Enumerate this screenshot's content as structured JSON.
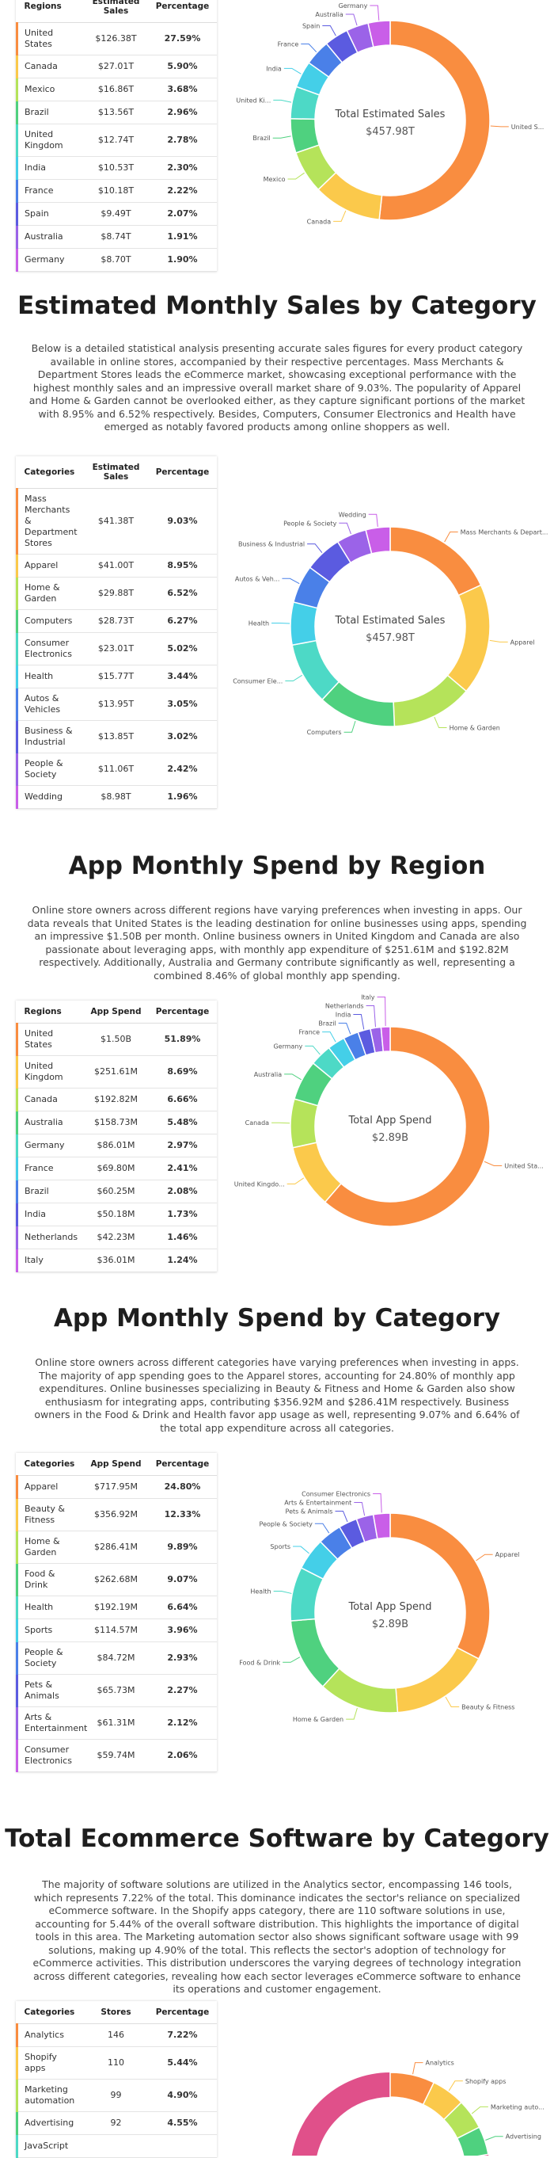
{
  "colors": [
    "#f98d40",
    "#fbc94b",
    "#b5e35a",
    "#4fd17f",
    "#4dd9c6",
    "#44cfe8",
    "#4a80e8",
    "#5b5be0",
    "#9b63e8",
    "#c95ee8"
  ],
  "sections": [
    {
      "table": {
        "columns": [
          "Regions",
          "Estimated Sales",
          "Percentage"
        ],
        "rows": [
          [
            "United States",
            "$126.38T",
            "27.59%"
          ],
          [
            "Canada",
            "$27.01T",
            "5.90%"
          ],
          [
            "Mexico",
            "$16.86T",
            "3.68%"
          ],
          [
            "Brazil",
            "$13.56T",
            "2.96%"
          ],
          [
            "United Kingdom",
            "$12.74T",
            "2.78%"
          ],
          [
            "India",
            "$10.53T",
            "2.30%"
          ],
          [
            "France",
            "$10.18T",
            "2.22%"
          ],
          [
            "Spain",
            "$9.49T",
            "2.07%"
          ],
          [
            "Australia",
            "$8.74T",
            "1.91%"
          ],
          [
            "Germany",
            "$8.70T",
            "1.90%"
          ]
        ]
      },
      "donut": {
        "center_title": "Total Estimated Sales",
        "center_value": "$457.98T",
        "labels": [
          "United S...",
          "Canada",
          "Mexico",
          "Brazil",
          "United Ki...",
          "India",
          "France",
          "Spain",
          "Australia",
          "Germany"
        ],
        "values": [
          27.59,
          5.9,
          3.68,
          2.96,
          2.78,
          2.3,
          2.22,
          2.07,
          1.91,
          1.9
        ]
      }
    },
    {
      "title": "Estimated Monthly Sales by Category",
      "paragraph": "Below is a detailed statistical analysis presenting accurate sales figures for every product category available in online stores, accompanied by their respective percentages. Mass Merchants & Department Stores leads the eCommerce market, showcasing exceptional performance with the highest monthly sales and an impressive overall market share of 9.03%. The popularity of Apparel and Home & Garden cannot be overlooked either, as they capture significant portions of the market with 8.95% and 6.52% respectively. Besides, Computers, Consumer Electronics and Health have emerged as notably favored products among online shoppers as well.",
      "table": {
        "columns": [
          "Categories",
          "Estimated Sales",
          "Percentage"
        ],
        "rows": [
          [
            "Mass Merchants & Department Stores",
            "$41.38T",
            "9.03%"
          ],
          [
            "Apparel",
            "$41.00T",
            "8.95%"
          ],
          [
            "Home & Garden",
            "$29.88T",
            "6.52%"
          ],
          [
            "Computers",
            "$28.73T",
            "6.27%"
          ],
          [
            "Consumer Electronics",
            "$23.01T",
            "5.02%"
          ],
          [
            "Health",
            "$15.77T",
            "3.44%"
          ],
          [
            "Autos & Vehicles",
            "$13.95T",
            "3.05%"
          ],
          [
            "Business & Industrial",
            "$13.85T",
            "3.02%"
          ],
          [
            "People & Society",
            "$11.06T",
            "2.42%"
          ],
          [
            "Wedding",
            "$8.98T",
            "1.96%"
          ]
        ]
      },
      "donut": {
        "center_title": "Total Estimated Sales",
        "center_value": "$457.98T",
        "labels": [
          "Mass Merchants & Depart...",
          "Apparel",
          "Home & Garden",
          "Computers",
          "Consumer Ele...",
          "Health",
          "Autos & Veh...",
          "Business & Industrial",
          "People & Society",
          "Wedding"
        ],
        "values": [
          9.03,
          8.95,
          6.52,
          6.27,
          5.02,
          3.44,
          3.05,
          3.02,
          2.42,
          1.96
        ]
      }
    },
    {
      "title": "App Monthly Spend by Region",
      "paragraph": "Online store owners across different regions have varying preferences when investing in apps. Our data reveals that United States is the leading destination for online businesses using apps, spending an impressive $1.50B per month. Online business owners in United Kingdom and Canada are also passionate about leveraging apps, with monthly app expenditure of $251.61M and $192.82M respectively. Additionally, Australia and Germany contribute significantly as well, representing a combined 8.46% of global monthly app spending.",
      "table": {
        "columns": [
          "Regions",
          "App Spend",
          "Percentage"
        ],
        "rows": [
          [
            "United States",
            "$1.50B",
            "51.89%"
          ],
          [
            "United Kingdom",
            "$251.61M",
            "8.69%"
          ],
          [
            "Canada",
            "$192.82M",
            "6.66%"
          ],
          [
            "Australia",
            "$158.73M",
            "5.48%"
          ],
          [
            "Germany",
            "$86.01M",
            "2.97%"
          ],
          [
            "France",
            "$69.80M",
            "2.41%"
          ],
          [
            "Brazil",
            "$60.25M",
            "2.08%"
          ],
          [
            "India",
            "$50.18M",
            "1.73%"
          ],
          [
            "Netherlands",
            "$42.23M",
            "1.46%"
          ],
          [
            "Italy",
            "$36.01M",
            "1.24%"
          ]
        ]
      },
      "donut": {
        "center_title": "Total App Spend",
        "center_value": "$2.89B",
        "labels": [
          "United Sta...",
          "United Kingdo...",
          "Canada",
          "Australia",
          "Germany",
          "France",
          "Brazil",
          "India",
          "Netherlands",
          "Italy"
        ],
        "values": [
          51.89,
          8.69,
          6.66,
          5.48,
          2.97,
          2.41,
          2.08,
          1.73,
          1.46,
          1.24
        ]
      }
    },
    {
      "title": "App Monthly Spend by Category",
      "paragraph": "Online store owners across different categories have varying preferences when investing in apps. The majority of app spending goes to the Apparel stores, accounting for 24.80% of monthly app expenditures. Online businesses specializing in Beauty & Fitness and Home & Garden also show enthusiasm for integrating apps, contributing $356.92M and $286.41M respectively. Business owners in the Food & Drink and Health favor app usage as well, representing 9.07% and 6.64% of the total app expenditure across all categories.",
      "table": {
        "columns": [
          "Categories",
          "App Spend",
          "Percentage"
        ],
        "rows": [
          [
            "Apparel",
            "$717.95M",
            "24.80%"
          ],
          [
            "Beauty & Fitness",
            "$356.92M",
            "12.33%"
          ],
          [
            "Home & Garden",
            "$286.41M",
            "9.89%"
          ],
          [
            "Food & Drink",
            "$262.68M",
            "9.07%"
          ],
          [
            "Health",
            "$192.19M",
            "6.64%"
          ],
          [
            "Sports",
            "$114.57M",
            "3.96%"
          ],
          [
            "People & Society",
            "$84.72M",
            "2.93%"
          ],
          [
            "Pets & Animals",
            "$65.73M",
            "2.27%"
          ],
          [
            "Arts & Entertainment",
            "$61.31M",
            "2.12%"
          ],
          [
            "Consumer Electronics",
            "$59.74M",
            "2.06%"
          ]
        ]
      },
      "donut": {
        "center_title": "Total App Spend",
        "center_value": "$2.89B",
        "labels": [
          "Apparel",
          "Beauty & Fitness",
          "Home & Garden",
          "Food & Drink",
          "Health",
          "Sports",
          "People & Society",
          "Pets & Animals",
          "Arts & Entertainment",
          "Consumer Electronics"
        ],
        "values": [
          24.8,
          12.33,
          9.89,
          9.07,
          6.64,
          3.96,
          2.93,
          2.27,
          2.12,
          2.06
        ]
      }
    },
    {
      "title": "Total Ecommerce Software by Category",
      "paragraph": "The majority of software solutions are utilized in the Analytics sector, encompassing 146 tools, which represents 7.22% of the total. This dominance indicates the sector's reliance on specialized eCommerce software. In the Shopify apps category, there are 110 software solutions in use, accounting for 5.44% of the overall software distribution. This highlights the importance of digital tools in this area. The Marketing automation sector also shows significant software usage with 99 solutions, making up 4.90% of the total. This reflects the sector's adoption of technology for eCommerce activities. This distribution underscores the varying degrees of technology integration across different categories, revealing how each sector leverages eCommerce software to enhance its operations and customer engagement.",
      "table": {
        "columns": [
          "Categories",
          "Stores",
          "Percentage"
        ],
        "rows": [
          [
            "Analytics",
            146,
            "7.22%"
          ],
          [
            "Shopify apps",
            110,
            "5.44%"
          ],
          [
            "Marketing automation",
            99,
            "4.90%"
          ],
          [
            "Advertising",
            92,
            "4.55%"
          ],
          [
            "JavaScript"
          ]
        ]
      },
      "donut": {
        "labels": [
          "Analytics",
          "Shopify apps",
          "Marketing auto...",
          "Advertising"
        ],
        "values": [
          7.22,
          5.44,
          4.9,
          4.55
        ],
        "full_circle": 100
      }
    }
  ]
}
